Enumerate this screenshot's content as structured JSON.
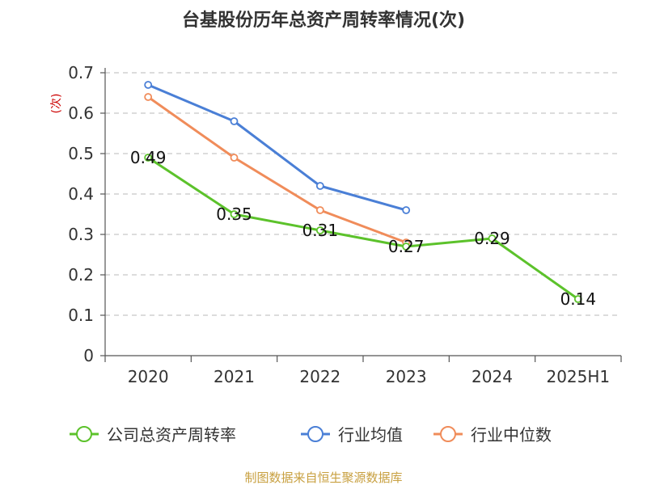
{
  "chart_data": {
    "type": "line",
    "title": "台基股份历年总资产周转率情况(次)",
    "ylabel": "(次)",
    "categories": [
      "2020",
      "2021",
      "2022",
      "2023",
      "2024",
      "2025H1"
    ],
    "ylim": [
      0,
      0.7
    ],
    "yticks": [
      "0",
      "0.1",
      "0.2",
      "0.3",
      "0.4",
      "0.5",
      "0.6",
      "0.7"
    ],
    "grid": true,
    "legend_position": "bottom",
    "series": [
      {
        "name": "公司总资产周转率",
        "color": "#5cc22b",
        "values": [
          0.49,
          0.35,
          0.31,
          0.27,
          0.29,
          0.14
        ],
        "labels": [
          "0.49",
          "0.35",
          "0.31",
          "0.27",
          "0.29",
          "0.14"
        ],
        "show_labels": true
      },
      {
        "name": "行业均值",
        "color": "#4a7fd6",
        "values": [
          0.67,
          0.58,
          0.42,
          0.36,
          null,
          null
        ],
        "show_labels": false
      },
      {
        "name": "行业中位数",
        "color": "#f08c5a",
        "values": [
          0.64,
          0.49,
          0.36,
          0.28,
          null,
          null
        ],
        "show_labels": false
      }
    ],
    "source": "制图数据来自恒生聚源数据库"
  }
}
